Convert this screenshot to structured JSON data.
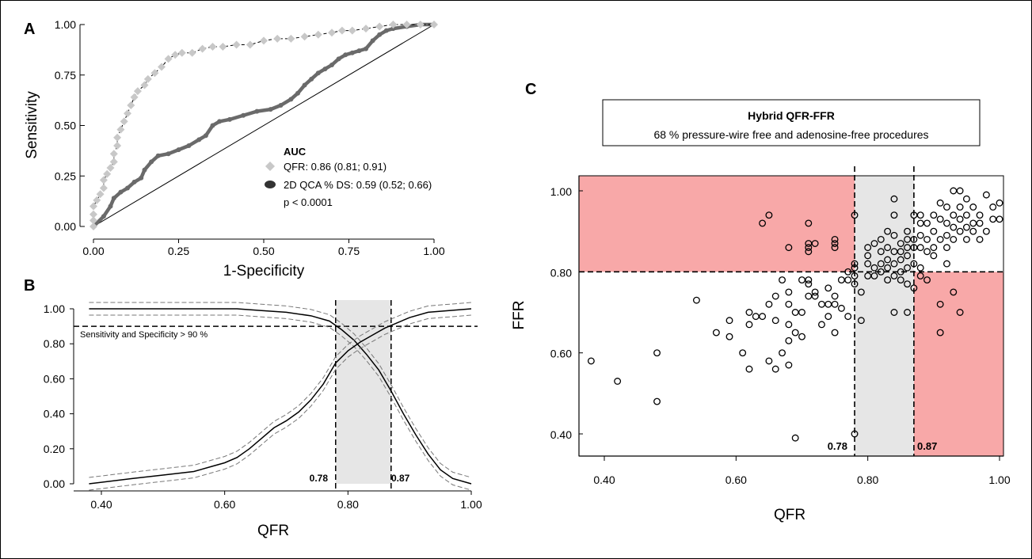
{
  "figure": {
    "border_color": "#000000"
  },
  "chart_data": [
    {
      "panel": "A",
      "type": "line",
      "title": "",
      "xlabel": "1-Specificity",
      "ylabel": "Sensitivity",
      "xlim": [
        0,
        1
      ],
      "ylim": [
        0,
        1
      ],
      "xticks": [
        "0.00",
        "0.25",
        "0.50",
        "0.75",
        "1.00"
      ],
      "yticks": [
        "0.00",
        "0.25",
        "0.50",
        "0.75",
        "1.00"
      ],
      "legend_title": "AUC",
      "legend_position": "lower-right",
      "p_value": "p < 0.0001",
      "series": [
        {
          "name": "QFR: 0.86 (0.81; 0.91)",
          "color": "#c8c8c8",
          "marker": "diamond",
          "points": [
            [
              0,
              0
            ],
            [
              0,
              0.03
            ],
            [
              0,
              0.06
            ],
            [
              0,
              0.1
            ],
            [
              0.01,
              0.13
            ],
            [
              0.02,
              0.16
            ],
            [
              0.03,
              0.19
            ],
            [
              0.03,
              0.23
            ],
            [
              0.04,
              0.26
            ],
            [
              0.05,
              0.29
            ],
            [
              0.06,
              0.32
            ],
            [
              0.06,
              0.36
            ],
            [
              0.07,
              0.4
            ],
            [
              0.07,
              0.44
            ],
            [
              0.08,
              0.48
            ],
            [
              0.09,
              0.52
            ],
            [
              0.1,
              0.56
            ],
            [
              0.11,
              0.6
            ],
            [
              0.12,
              0.64
            ],
            [
              0.13,
              0.67
            ],
            [
              0.15,
              0.7
            ],
            [
              0.16,
              0.73
            ],
            [
              0.18,
              0.76
            ],
            [
              0.2,
              0.79
            ],
            [
              0.22,
              0.83
            ],
            [
              0.24,
              0.85
            ],
            [
              0.26,
              0.86
            ],
            [
              0.29,
              0.86
            ],
            [
              0.32,
              0.88
            ],
            [
              0.35,
              0.89
            ],
            [
              0.38,
              0.89
            ],
            [
              0.42,
              0.9
            ],
            [
              0.46,
              0.9
            ],
            [
              0.5,
              0.92
            ],
            [
              0.54,
              0.93
            ],
            [
              0.58,
              0.93
            ],
            [
              0.62,
              0.94
            ],
            [
              0.66,
              0.95
            ],
            [
              0.7,
              0.96
            ],
            [
              0.73,
              0.97
            ],
            [
              0.76,
              0.97
            ],
            [
              0.8,
              0.98
            ],
            [
              0.84,
              0.99
            ],
            [
              0.88,
              1.0
            ],
            [
              0.92,
              1.0
            ],
            [
              0.96,
              1.0
            ],
            [
              1,
              1
            ]
          ]
        },
        {
          "name": "2D QCA % DS: 0.59 (0.52; 0.66)",
          "color": "#707070",
          "marker": "circle",
          "points": [
            [
              0,
              0
            ],
            [
              0.03,
              0.05
            ],
            [
              0.05,
              0.1
            ],
            [
              0.06,
              0.14
            ],
            [
              0.08,
              0.17
            ],
            [
              0.1,
              0.19
            ],
            [
              0.12,
              0.22
            ],
            [
              0.14,
              0.24
            ],
            [
              0.15,
              0.28
            ],
            [
              0.17,
              0.32
            ],
            [
              0.19,
              0.35
            ],
            [
              0.22,
              0.36
            ],
            [
              0.25,
              0.38
            ],
            [
              0.28,
              0.4
            ],
            [
              0.31,
              0.43
            ],
            [
              0.33,
              0.45
            ],
            [
              0.35,
              0.5
            ],
            [
              0.37,
              0.52
            ],
            [
              0.4,
              0.53
            ],
            [
              0.44,
              0.55
            ],
            [
              0.48,
              0.57
            ],
            [
              0.52,
              0.58
            ],
            [
              0.55,
              0.6
            ],
            [
              0.58,
              0.63
            ],
            [
              0.6,
              0.66
            ],
            [
              0.62,
              0.7
            ],
            [
              0.64,
              0.73
            ],
            [
              0.66,
              0.76
            ],
            [
              0.68,
              0.78
            ],
            [
              0.7,
              0.8
            ],
            [
              0.72,
              0.83
            ],
            [
              0.74,
              0.85
            ],
            [
              0.76,
              0.86
            ],
            [
              0.78,
              0.87
            ],
            [
              0.8,
              0.88
            ],
            [
              0.82,
              0.92
            ],
            [
              0.84,
              0.95
            ],
            [
              0.86,
              0.97
            ],
            [
              0.88,
              0.98
            ],
            [
              0.92,
              0.99
            ],
            [
              0.96,
              1.0
            ],
            [
              1,
              1
            ]
          ]
        }
      ],
      "reference_line": [
        [
          0,
          0
        ],
        [
          1,
          1
        ]
      ]
    },
    {
      "panel": "B",
      "type": "line",
      "title": "",
      "xlabel": "QFR",
      "ylabel": "",
      "xlim": [
        0.38,
        1.0
      ],
      "ylim": [
        0,
        1
      ],
      "xticks": [
        "0.40",
        "0.60",
        "0.80",
        "1.00"
      ],
      "yticks": [
        "0.00",
        "0.20",
        "0.40",
        "0.60",
        "0.80",
        "1.00"
      ],
      "annotation": "Sensitivity and Specificity > 90 %",
      "threshold_y": 0.9,
      "zone": [
        0.78,
        0.87
      ],
      "zone_labels": [
        "0.78",
        "0.87"
      ],
      "zone_color": "#e6e6e6",
      "series": [
        {
          "curve": "sensitivity",
          "x": [
            0.38,
            0.62,
            0.66,
            0.7,
            0.74,
            0.77,
            0.79,
            0.81,
            0.83,
            0.85,
            0.87,
            0.89,
            0.91,
            0.93,
            0.95,
            0.97,
            1.0
          ],
          "y": [
            1.0,
            1.0,
            0.99,
            0.98,
            0.96,
            0.93,
            0.88,
            0.82,
            0.74,
            0.65,
            0.53,
            0.4,
            0.28,
            0.17,
            0.08,
            0.03,
            0.0
          ]
        },
        {
          "curve": "specificity",
          "x": [
            0.38,
            0.45,
            0.5,
            0.55,
            0.58,
            0.6,
            0.62,
            0.64,
            0.66,
            0.68,
            0.7,
            0.72,
            0.74,
            0.76,
            0.78,
            0.8,
            0.82,
            0.84,
            0.86,
            0.88,
            0.9,
            0.93,
            1.0
          ],
          "y": [
            0.0,
            0.03,
            0.05,
            0.07,
            0.1,
            0.12,
            0.15,
            0.2,
            0.26,
            0.32,
            0.36,
            0.41,
            0.48,
            0.57,
            0.69,
            0.76,
            0.81,
            0.85,
            0.89,
            0.92,
            0.95,
            0.98,
            1.0
          ]
        }
      ]
    },
    {
      "panel": "C",
      "type": "scatter",
      "title": "",
      "xlabel": "QFR",
      "ylabel": "FFR",
      "xlim": [
        0.37,
        1.0
      ],
      "ylim": [
        0.35,
        1.04
      ],
      "xticks": [
        "0.40",
        "0.60",
        "0.80",
        "1.00"
      ],
      "yticks": [
        "0.40",
        "0.60",
        "0.80",
        "1.00"
      ],
      "header_title": "Hybrid QFR-FFR",
      "header_subtitle": "68 % pressure-wire free and adenosine-free procedures",
      "zone": [
        0.78,
        0.87
      ],
      "zone_labels": [
        "0.78",
        "0.87"
      ],
      "ffr_cutoff": 0.8,
      "discordant_color": "#f8a8a8",
      "gray_zone_color": "#e6e6e6",
      "points": [
        [
          0.38,
          0.58
        ],
        [
          0.42,
          0.53
        ],
        [
          0.48,
          0.6
        ],
        [
          0.48,
          0.48
        ],
        [
          0.54,
          0.73
        ],
        [
          0.57,
          0.65
        ],
        [
          0.59,
          0.68
        ],
        [
          0.59,
          0.64
        ],
        [
          0.61,
          0.6
        ],
        [
          0.62,
          0.56
        ],
        [
          0.62,
          0.67
        ],
        [
          0.62,
          0.7
        ],
        [
          0.63,
          0.69
        ],
        [
          0.64,
          0.92
        ],
        [
          0.64,
          0.69
        ],
        [
          0.65,
          0.72
        ],
        [
          0.65,
          0.58
        ],
        [
          0.65,
          0.94
        ],
        [
          0.66,
          0.74
        ],
        [
          0.66,
          0.56
        ],
        [
          0.66,
          0.68
        ],
        [
          0.67,
          0.6
        ],
        [
          0.67,
          0.78
        ],
        [
          0.68,
          0.86
        ],
        [
          0.68,
          0.75
        ],
        [
          0.68,
          0.72
        ],
        [
          0.68,
          0.67
        ],
        [
          0.68,
          0.63
        ],
        [
          0.68,
          0.57
        ],
        [
          0.69,
          0.65
        ],
        [
          0.69,
          0.7
        ],
        [
          0.69,
          0.39
        ],
        [
          0.7,
          0.78
        ],
        [
          0.7,
          0.64
        ],
        [
          0.7,
          0.7
        ],
        [
          0.71,
          0.92
        ],
        [
          0.71,
          0.87
        ],
        [
          0.71,
          0.86
        ],
        [
          0.71,
          0.85
        ],
        [
          0.71,
          0.78
        ],
        [
          0.71,
          0.77
        ],
        [
          0.71,
          0.74
        ],
        [
          0.72,
          0.87
        ],
        [
          0.72,
          0.75
        ],
        [
          0.72,
          0.74
        ],
        [
          0.73,
          0.72
        ],
        [
          0.73,
          0.67
        ],
        [
          0.74,
          0.76
        ],
        [
          0.74,
          0.72
        ],
        [
          0.74,
          0.69
        ],
        [
          0.75,
          0.88
        ],
        [
          0.75,
          0.87
        ],
        [
          0.75,
          0.86
        ],
        [
          0.75,
          0.74
        ],
        [
          0.75,
          0.72
        ],
        [
          0.75,
          0.65
        ],
        [
          0.76,
          0.78
        ],
        [
          0.76,
          0.71
        ],
        [
          0.77,
          0.8
        ],
        [
          0.77,
          0.78
        ],
        [
          0.77,
          0.69
        ],
        [
          0.78,
          0.94
        ],
        [
          0.78,
          0.82
        ],
        [
          0.78,
          0.81
        ],
        [
          0.78,
          0.79
        ],
        [
          0.78,
          0.77
        ],
        [
          0.78,
          0.4
        ],
        [
          0.79,
          0.75
        ],
        [
          0.79,
          0.68
        ],
        [
          0.8,
          0.86
        ],
        [
          0.8,
          0.84
        ],
        [
          0.8,
          0.82
        ],
        [
          0.8,
          0.79
        ],
        [
          0.81,
          0.87
        ],
        [
          0.81,
          0.81
        ],
        [
          0.81,
          0.79
        ],
        [
          0.82,
          0.88
        ],
        [
          0.82,
          0.85
        ],
        [
          0.82,
          0.82
        ],
        [
          0.82,
          0.8
        ],
        [
          0.83,
          0.9
        ],
        [
          0.83,
          0.86
        ],
        [
          0.83,
          0.83
        ],
        [
          0.83,
          0.81
        ],
        [
          0.83,
          0.78
        ],
        [
          0.84,
          0.98
        ],
        [
          0.84,
          0.94
        ],
        [
          0.84,
          0.89
        ],
        [
          0.84,
          0.85
        ],
        [
          0.84,
          0.82
        ],
        [
          0.84,
          0.79
        ],
        [
          0.84,
          0.7
        ],
        [
          0.85,
          0.87
        ],
        [
          0.85,
          0.85
        ],
        [
          0.85,
          0.83
        ],
        [
          0.85,
          0.8
        ],
        [
          0.85,
          0.78
        ],
        [
          0.86,
          0.9
        ],
        [
          0.86,
          0.88
        ],
        [
          0.86,
          0.86
        ],
        [
          0.86,
          0.84
        ],
        [
          0.86,
          0.81
        ],
        [
          0.86,
          0.77
        ],
        [
          0.86,
          0.7
        ],
        [
          0.87,
          0.94
        ],
        [
          0.87,
          0.88
        ],
        [
          0.87,
          0.86
        ],
        [
          0.87,
          0.82
        ],
        [
          0.87,
          0.76
        ],
        [
          0.88,
          0.94
        ],
        [
          0.88,
          0.92
        ],
        [
          0.88,
          0.89
        ],
        [
          0.88,
          0.86
        ],
        [
          0.88,
          0.81
        ],
        [
          0.88,
          0.79
        ],
        [
          0.89,
          0.92
        ],
        [
          0.89,
          0.88
        ],
        [
          0.89,
          0.85
        ],
        [
          0.89,
          0.78
        ],
        [
          0.9,
          0.94
        ],
        [
          0.9,
          0.9
        ],
        [
          0.9,
          0.86
        ],
        [
          0.9,
          0.84
        ],
        [
          0.91,
          0.97
        ],
        [
          0.91,
          0.93
        ],
        [
          0.91,
          0.88
        ],
        [
          0.91,
          0.72
        ],
        [
          0.91,
          0.65
        ],
        [
          0.92,
          0.96
        ],
        [
          0.92,
          0.92
        ],
        [
          0.92,
          0.89
        ],
        [
          0.92,
          0.86
        ],
        [
          0.92,
          0.82
        ],
        [
          0.93,
          0.94
        ],
        [
          0.93,
          0.91
        ],
        [
          0.93,
          0.88
        ],
        [
          0.93,
          0.75
        ],
        [
          0.93,
          1.0
        ],
        [
          0.94,
          1.0
        ],
        [
          0.94,
          0.96
        ],
        [
          0.94,
          0.93
        ],
        [
          0.94,
          0.9
        ],
        [
          0.94,
          0.7
        ],
        [
          0.95,
          0.98
        ],
        [
          0.95,
          0.94
        ],
        [
          0.95,
          0.91
        ],
        [
          0.95,
          0.88
        ],
        [
          0.96,
          0.96
        ],
        [
          0.96,
          0.92
        ],
        [
          0.96,
          0.9
        ],
        [
          0.97,
          0.94
        ],
        [
          0.97,
          0.92
        ],
        [
          0.97,
          0.88
        ],
        [
          0.98,
          0.99
        ],
        [
          0.98,
          0.9
        ],
        [
          0.99,
          0.93
        ],
        [
          0.99,
          0.96
        ],
        [
          1.0,
          0.97
        ],
        [
          1.0,
          0.93
        ]
      ]
    }
  ]
}
